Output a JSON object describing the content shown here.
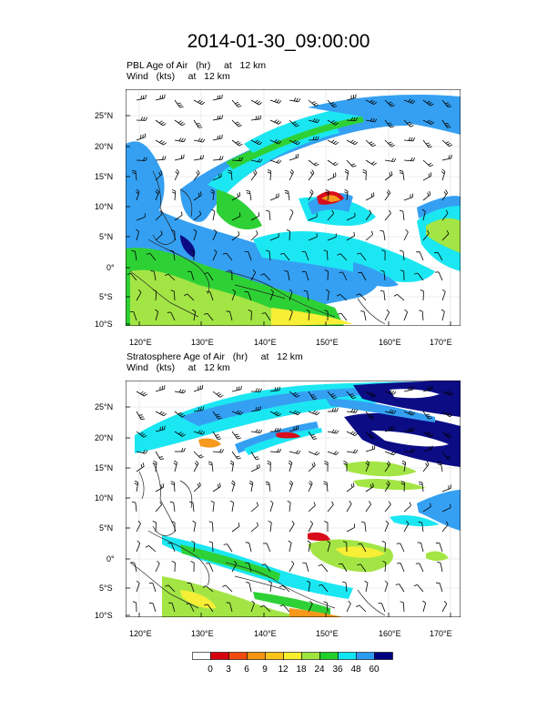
{
  "title": "2014-01-30_09:00:00",
  "panels": [
    {
      "line1": "PBL Age of Air   (hr)     at   12 km",
      "line2": "Wind   (kts)     at   12 km"
    },
    {
      "line1": "Stratosphere Age of Air   (hr)     at   12 km",
      "line2": "Wind   (kts)     at   12 km"
    }
  ],
  "lat_ticks": [
    "25°N",
    "20°N",
    "15°N",
    "10°N",
    "5°N",
    "0°",
    "5°S",
    "10°S"
  ],
  "lon_ticks": [
    "120°E",
    "130°E",
    "140°E",
    "150°E",
    "160°E",
    "170°E"
  ],
  "colorbar": {
    "labels": [
      "0",
      "3",
      "6",
      "9",
      "12",
      "18",
      "24",
      "36",
      "48",
      "60"
    ],
    "colors": [
      "#ffffff",
      "#d7000f",
      "#f24a0f",
      "#f79410",
      "#f9c41a",
      "#f7ee2c",
      "#9fe43c",
      "#23cf2b",
      "#0fe6f2",
      "#2b9bf2",
      "#00007f"
    ]
  }
}
